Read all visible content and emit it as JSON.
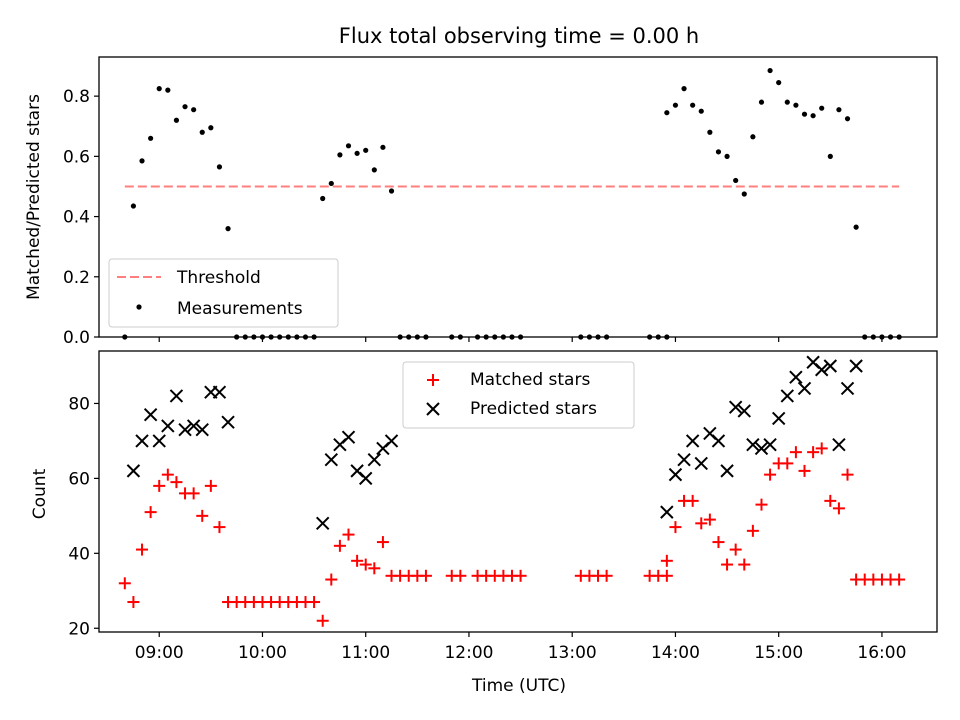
{
  "chart_data": [
    {
      "type": "scatter",
      "title": "Flux total observing time = 0.00 h",
      "ylabel": "Matched/Predicted stars",
      "xlabel": "",
      "ylim": [
        0,
        0.93
      ],
      "yticks": [
        "0.0",
        "0.2",
        "0.4",
        "0.6",
        "0.8"
      ],
      "ytick_values": [
        0,
        0.2,
        0.4,
        0.6,
        0.8
      ],
      "legend_position": "lower-left",
      "threshold": {
        "name": "Threshold",
        "value": 0.5,
        "x_start": "08:40",
        "x_end": "16:10",
        "color": "#ff7f7f",
        "style": "dashed"
      },
      "series": [
        {
          "name": "Measurements",
          "marker": "dot",
          "color": "#000000",
          "points": [
            [
              "08:40",
              0.0
            ],
            [
              "08:45",
              0.435
            ],
            [
              "08:50",
              0.585
            ],
            [
              "08:55",
              0.66
            ],
            [
              "09:00",
              0.825
            ],
            [
              "09:05",
              0.82
            ],
            [
              "09:10",
              0.72
            ],
            [
              "09:15",
              0.765
            ],
            [
              "09:20",
              0.755
            ],
            [
              "09:25",
              0.68
            ],
            [
              "09:30",
              0.695
            ],
            [
              "09:35",
              0.565
            ],
            [
              "09:40",
              0.36
            ],
            [
              "09:45",
              0.0
            ],
            [
              "09:50",
              0.0
            ],
            [
              "09:55",
              0.0
            ],
            [
              "10:00",
              0.0
            ],
            [
              "10:05",
              0.0
            ],
            [
              "10:10",
              0.0
            ],
            [
              "10:15",
              0.0
            ],
            [
              "10:20",
              0.0
            ],
            [
              "10:25",
              0.0
            ],
            [
              "10:30",
              0.0
            ],
            [
              "10:35",
              0.46
            ],
            [
              "10:40",
              0.51
            ],
            [
              "10:45",
              0.605
            ],
            [
              "10:50",
              0.635
            ],
            [
              "10:55",
              0.61
            ],
            [
              "11:00",
              0.62
            ],
            [
              "11:05",
              0.555
            ],
            [
              "11:10",
              0.63
            ],
            [
              "11:15",
              0.485
            ],
            [
              "11:20",
              0.0
            ],
            [
              "11:25",
              0.0
            ],
            [
              "11:30",
              0.0
            ],
            [
              "11:35",
              0.0
            ],
            [
              "11:50",
              0.0
            ],
            [
              "11:55",
              0.0
            ],
            [
              "12:05",
              0.0
            ],
            [
              "12:10",
              0.0
            ],
            [
              "12:15",
              0.0
            ],
            [
              "12:20",
              0.0
            ],
            [
              "12:25",
              0.0
            ],
            [
              "12:30",
              0.0
            ],
            [
              "13:05",
              0.0
            ],
            [
              "13:10",
              0.0
            ],
            [
              "13:15",
              0.0
            ],
            [
              "13:20",
              0.0
            ],
            [
              "13:45",
              0.0
            ],
            [
              "13:50",
              0.0
            ],
            [
              "13:55",
              0.0
            ],
            [
              "13:55",
              0.745
            ],
            [
              "14:00",
              0.77
            ],
            [
              "14:05",
              0.825
            ],
            [
              "14:10",
              0.77
            ],
            [
              "14:15",
              0.75
            ],
            [
              "14:20",
              0.68
            ],
            [
              "14:25",
              0.615
            ],
            [
              "14:30",
              0.6
            ],
            [
              "14:35",
              0.52
            ],
            [
              "14:40",
              0.475
            ],
            [
              "14:45",
              0.665
            ],
            [
              "14:50",
              0.78
            ],
            [
              "14:55",
              0.885
            ],
            [
              "15:00",
              0.845
            ],
            [
              "15:05",
              0.78
            ],
            [
              "15:10",
              0.77
            ],
            [
              "15:15",
              0.74
            ],
            [
              "15:20",
              0.735
            ],
            [
              "15:25",
              0.76
            ],
            [
              "15:30",
              0.6
            ],
            [
              "15:35",
              0.755
            ],
            [
              "15:40",
              0.725
            ],
            [
              "15:45",
              0.365
            ],
            [
              "15:50",
              0.0
            ],
            [
              "15:55",
              0.0
            ],
            [
              "16:00",
              0.0
            ],
            [
              "16:05",
              0.0
            ],
            [
              "16:10",
              0.0
            ]
          ]
        }
      ]
    },
    {
      "type": "scatter",
      "title": "",
      "xlabel": "Time (UTC)",
      "ylabel": "Count",
      "ylim": [
        19,
        94
      ],
      "yticks": [
        "20",
        "40",
        "60",
        "80"
      ],
      "ytick_values": [
        20,
        40,
        60,
        80
      ],
      "xticks": [
        "09:00",
        "10:00",
        "11:00",
        "12:00",
        "13:00",
        "14:00",
        "15:00",
        "16:00"
      ],
      "xlim": [
        "08:25",
        "16:32"
      ],
      "legend_position": "upper-center",
      "series": [
        {
          "name": "Matched stars",
          "marker": "plus",
          "color": "#ff0000",
          "points": [
            [
              "08:40",
              32
            ],
            [
              "08:45",
              27
            ],
            [
              "08:50",
              41
            ],
            [
              "08:55",
              51
            ],
            [
              "09:00",
              58
            ],
            [
              "09:05",
              61
            ],
            [
              "09:10",
              59
            ],
            [
              "09:15",
              56
            ],
            [
              "09:20",
              56
            ],
            [
              "09:25",
              50
            ],
            [
              "09:30",
              58
            ],
            [
              "09:35",
              47
            ],
            [
              "09:40",
              27
            ],
            [
              "09:45",
              27
            ],
            [
              "09:50",
              27
            ],
            [
              "09:55",
              27
            ],
            [
              "10:00",
              27
            ],
            [
              "10:05",
              27
            ],
            [
              "10:10",
              27
            ],
            [
              "10:15",
              27
            ],
            [
              "10:20",
              27
            ],
            [
              "10:25",
              27
            ],
            [
              "10:30",
              27
            ],
            [
              "10:35",
              22
            ],
            [
              "10:40",
              33
            ],
            [
              "10:45",
              42
            ],
            [
              "10:50",
              45
            ],
            [
              "10:55",
              38
            ],
            [
              "11:00",
              37
            ],
            [
              "11:05",
              36
            ],
            [
              "11:10",
              43
            ],
            [
              "11:15",
              34
            ],
            [
              "11:20",
              34
            ],
            [
              "11:25",
              34
            ],
            [
              "11:30",
              34
            ],
            [
              "11:35",
              34
            ],
            [
              "11:50",
              34
            ],
            [
              "11:55",
              34
            ],
            [
              "12:05",
              34
            ],
            [
              "12:10",
              34
            ],
            [
              "12:15",
              34
            ],
            [
              "12:20",
              34
            ],
            [
              "12:25",
              34
            ],
            [
              "12:30",
              34
            ],
            [
              "13:05",
              34
            ],
            [
              "13:10",
              34
            ],
            [
              "13:15",
              34
            ],
            [
              "13:20",
              34
            ],
            [
              "13:45",
              34
            ],
            [
              "13:50",
              34
            ],
            [
              "13:55",
              34
            ],
            [
              "13:55",
              38
            ],
            [
              "14:00",
              47
            ],
            [
              "14:05",
              54
            ],
            [
              "14:10",
              54
            ],
            [
              "14:15",
              48
            ],
            [
              "14:20",
              49
            ],
            [
              "14:25",
              43
            ],
            [
              "14:30",
              37
            ],
            [
              "14:35",
              41
            ],
            [
              "14:40",
              37
            ],
            [
              "14:45",
              46
            ],
            [
              "14:50",
              53
            ],
            [
              "14:55",
              61
            ],
            [
              "15:00",
              64
            ],
            [
              "15:05",
              64
            ],
            [
              "15:10",
              67
            ],
            [
              "15:15",
              62
            ],
            [
              "15:20",
              67
            ],
            [
              "15:25",
              68
            ],
            [
              "15:30",
              54
            ],
            [
              "15:35",
              52
            ],
            [
              "15:40",
              61
            ],
            [
              "15:45",
              33
            ],
            [
              "15:50",
              33
            ],
            [
              "15:55",
              33
            ],
            [
              "16:00",
              33
            ],
            [
              "16:05",
              33
            ],
            [
              "16:10",
              33
            ]
          ]
        },
        {
          "name": "Predicted stars",
          "marker": "x",
          "color": "#000000",
          "points": [
            [
              "08:45",
              62
            ],
            [
              "08:50",
              70
            ],
            [
              "08:55",
              77
            ],
            [
              "09:00",
              70
            ],
            [
              "09:05",
              74
            ],
            [
              "09:10",
              82
            ],
            [
              "09:15",
              73
            ],
            [
              "09:20",
              74
            ],
            [
              "09:25",
              73
            ],
            [
              "09:30",
              83
            ],
            [
              "09:35",
              83
            ],
            [
              "09:40",
              75
            ],
            [
              "10:35",
              48
            ],
            [
              "10:40",
              65
            ],
            [
              "10:45",
              69
            ],
            [
              "10:50",
              71
            ],
            [
              "10:55",
              62
            ],
            [
              "11:00",
              60
            ],
            [
              "11:05",
              65
            ],
            [
              "11:10",
              68
            ],
            [
              "11:15",
              70
            ],
            [
              "13:55",
              51
            ],
            [
              "14:00",
              61
            ],
            [
              "14:05",
              65
            ],
            [
              "14:10",
              70
            ],
            [
              "14:15",
              64
            ],
            [
              "14:20",
              72
            ],
            [
              "14:25",
              70
            ],
            [
              "14:30",
              62
            ],
            [
              "14:35",
              79
            ],
            [
              "14:40",
              78
            ],
            [
              "14:45",
              69
            ],
            [
              "14:50",
              68
            ],
            [
              "14:55",
              69
            ],
            [
              "15:00",
              76
            ],
            [
              "15:05",
              82
            ],
            [
              "15:10",
              87
            ],
            [
              "15:15",
              84
            ],
            [
              "15:20",
              91
            ],
            [
              "15:25",
              89
            ],
            [
              "15:30",
              90
            ],
            [
              "15:35",
              69
            ],
            [
              "15:40",
              84
            ],
            [
              "15:45",
              90
            ]
          ]
        }
      ]
    }
  ]
}
